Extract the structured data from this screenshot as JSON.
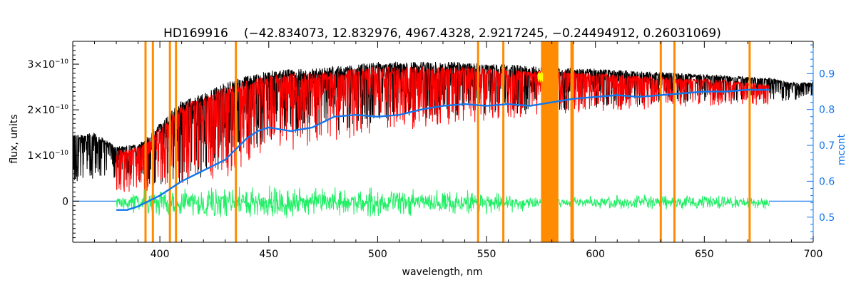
{
  "chart_data": {
    "type": "line",
    "title": "HD169916",
    "title_params": "(−42.834073, 12.832976, 4967.4328, 2.9217245, −0.24494912, 0.26031069)",
    "xlabel": "wavelength, nm",
    "ylabel": "flux, units",
    "y2label": "mcont",
    "xlim": [
      360,
      700
    ],
    "ylim": [
      -9e-11,
      3.5e-10
    ],
    "y2lim": [
      0.43,
      0.99
    ],
    "x_ticks": [
      400,
      450,
      500,
      550,
      600,
      650,
      700
    ],
    "y_ticks": [
      0,
      1e-10,
      2e-10,
      3e-10
    ],
    "y_tick_labels": {
      "mantissa": [
        "0",
        "1×10",
        "2×10",
        "3×10"
      ],
      "exponent": [
        "",
        "−10",
        "−10",
        "−10"
      ]
    },
    "y2_ticks": [
      0.5,
      0.6,
      0.7,
      0.8,
      0.9
    ],
    "y2_tick_labels": [
      "0.5",
      "0.6",
      "0.7",
      "0.8",
      "0.9"
    ],
    "series": [
      {
        "role": "observed spectrum",
        "color": "#000000",
        "x_range": [
          360,
          700
        ],
        "envelope_x": [
          360,
          370,
          380,
          390,
          400,
          410,
          420,
          430,
          440,
          450,
          460,
          470,
          480,
          490,
          500,
          510,
          520,
          530,
          540,
          550,
          560,
          570,
          580,
          590,
          600,
          620,
          640,
          660,
          680,
          690,
          700
        ],
        "envelope_top": [
          1.45e-10,
          1.5e-10,
          1.2e-10,
          1.25e-10,
          1.7e-10,
          2.2e-10,
          2.35e-10,
          2.6e-10,
          2.75e-10,
          2.85e-10,
          2.9e-10,
          2.9e-10,
          2.95e-10,
          3e-10,
          3.05e-10,
          3.05e-10,
          3.05e-10,
          3.05e-10,
          3.05e-10,
          3e-10,
          3e-10,
          2.95e-10,
          2.95e-10,
          2.9e-10,
          2.9e-10,
          2.85e-10,
          2.8e-10,
          2.75e-10,
          2.7e-10,
          2.6e-10,
          2.6e-10
        ],
        "envelope_bottom": [
          4e-11,
          5e-11,
          5e-11,
          4e-11,
          3e-11,
          4e-11,
          5e-11,
          6e-11,
          1e-10,
          1.2e-10,
          1.3e-10,
          1.4e-10,
          1.5e-10,
          1.6e-10,
          1.7e-10,
          1.75e-10,
          1.8e-10,
          1.8e-10,
          1.85e-10,
          1.9e-10,
          1.9e-10,
          1.9e-10,
          1.95e-10,
          2e-10,
          2.05e-10,
          2.1e-10,
          2.15e-10,
          2.2e-10,
          2.2e-10,
          2.2e-10,
          2.25e-10
        ]
      },
      {
        "role": "model spectrum",
        "color": "#ff0000",
        "x_range": [
          380,
          680
        ],
        "envelope_x": [
          380,
          390,
          400,
          410,
          420,
          430,
          440,
          450,
          460,
          470,
          480,
          490,
          500,
          510,
          520,
          530,
          540,
          550,
          560,
          570,
          580,
          590,
          600,
          620,
          640,
          660,
          680
        ],
        "envelope_top": [
          1.1e-10,
          1.2e-10,
          1.6e-10,
          2.1e-10,
          2.3e-10,
          2.5e-10,
          2.65e-10,
          2.75e-10,
          2.8e-10,
          2.8e-10,
          2.85e-10,
          2.9e-10,
          2.95e-10,
          2.95e-10,
          2.95e-10,
          2.95e-10,
          2.95e-10,
          2.9e-10,
          2.9e-10,
          2.85e-10,
          2.85e-10,
          2.85e-10,
          2.8e-10,
          2.75e-10,
          2.7e-10,
          2.65e-10,
          2.55e-10
        ],
        "envelope_bottom": [
          2e-11,
          2e-11,
          2e-11,
          3e-11,
          4e-11,
          5e-11,
          8e-11,
          1e-10,
          1.1e-10,
          1.2e-10,
          1.3e-10,
          1.4e-10,
          1.5e-10,
          1.55e-10,
          1.6e-10,
          1.65e-10,
          1.7e-10,
          1.75e-10,
          1.8e-10,
          1.85e-10,
          1.9e-10,
          1.9e-10,
          1.95e-10,
          2e-10,
          2.05e-10,
          2.1e-10,
          2.1e-10
        ]
      },
      {
        "role": "residuals",
        "color": "#22ee66",
        "x_range": [
          380,
          680
        ],
        "center": -3e-12,
        "envelope_x": [
          380,
          400,
          420,
          440,
          460,
          480,
          500,
          520,
          540,
          560,
          575,
          585,
          600,
          620,
          640,
          660,
          680
        ],
        "amplitude": [
          2.5e-11,
          3.5e-11,
          4.5e-11,
          4.5e-11,
          4.5e-11,
          4e-11,
          4e-11,
          3.5e-11,
          3.5e-11,
          3e-11,
          1.5e-11,
          1.5e-11,
          2e-11,
          2e-11,
          2e-11,
          2e-11,
          1.5e-11
        ]
      },
      {
        "role": "continuum (mcont, right axis)",
        "color": "#1177ee",
        "axis": "y2",
        "x": [
          360,
          380,
          385,
          390,
          400,
          410,
          420,
          430,
          440,
          445,
          450,
          460,
          470,
          480,
          490,
          500,
          510,
          520,
          530,
          540,
          550,
          560,
          570,
          580,
          590,
          600,
          610,
          620,
          630,
          640,
          650,
          660,
          670,
          680,
          690,
          700
        ],
        "values": [
          0.54,
          0.52,
          0.52,
          0.53,
          0.56,
          0.6,
          0.63,
          0.66,
          0.72,
          0.74,
          0.75,
          0.74,
          0.75,
          0.78,
          0.785,
          0.78,
          0.785,
          0.8,
          0.81,
          0.815,
          0.81,
          0.815,
          0.81,
          0.82,
          0.83,
          0.835,
          0.84,
          0.835,
          0.84,
          0.845,
          0.85,
          0.85,
          0.855,
          0.855,
          0.54,
          0.54
        ]
      }
    ],
    "masked_lines": {
      "color": "#ff8c00",
      "wavelengths": [
        393.4,
        396.8,
        404.6,
        407.4,
        434.9,
        546.1,
        557.7,
        589.0,
        589.6,
        630.0,
        636.3,
        670.8
      ],
      "bands": [
        [
          575.0,
          583.0
        ]
      ]
    },
    "highlight_color": "#ffff00",
    "grid": false,
    "legend": "none"
  }
}
